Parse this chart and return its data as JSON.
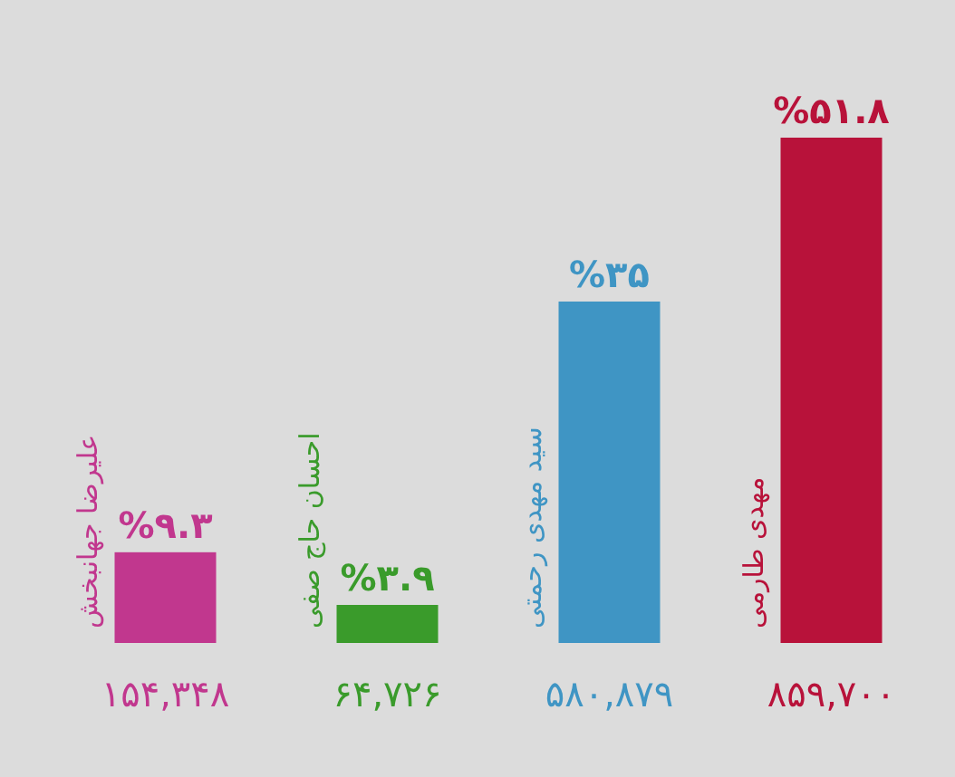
{
  "chart_data": {
    "type": "bar",
    "categories": [
      "علیرضا جهانبخش",
      "احسان حاج صفی",
      "سید مهدی رحمتی",
      "مهدی طارمی"
    ],
    "values": [
      9.3,
      3.9,
      35,
      51.8
    ],
    "colors": [
      "#c1378e",
      "#3a9b2b",
      "#3f95c4",
      "#b8123a"
    ],
    "value_labels": [
      "%۹.۳",
      "%۳.۹",
      "%۳۵",
      "%۵۱.۸"
    ],
    "annotations": [
      "۱۵۴,۳۴۸",
      "۶۴,۷۲۶",
      "۵۸۰,۸۷۹",
      "۸۵۹,۷۰۰"
    ]
  }
}
